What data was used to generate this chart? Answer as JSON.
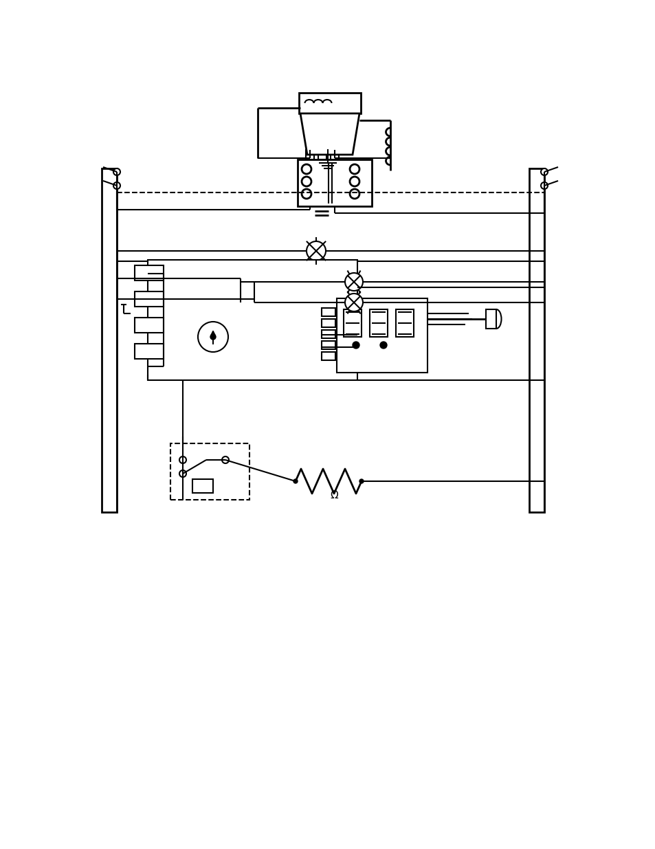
{
  "bg_color": "#ffffff",
  "line_color": "#000000",
  "line_width": 1.5,
  "fig_width": 9.54,
  "fig_height": 12.35
}
